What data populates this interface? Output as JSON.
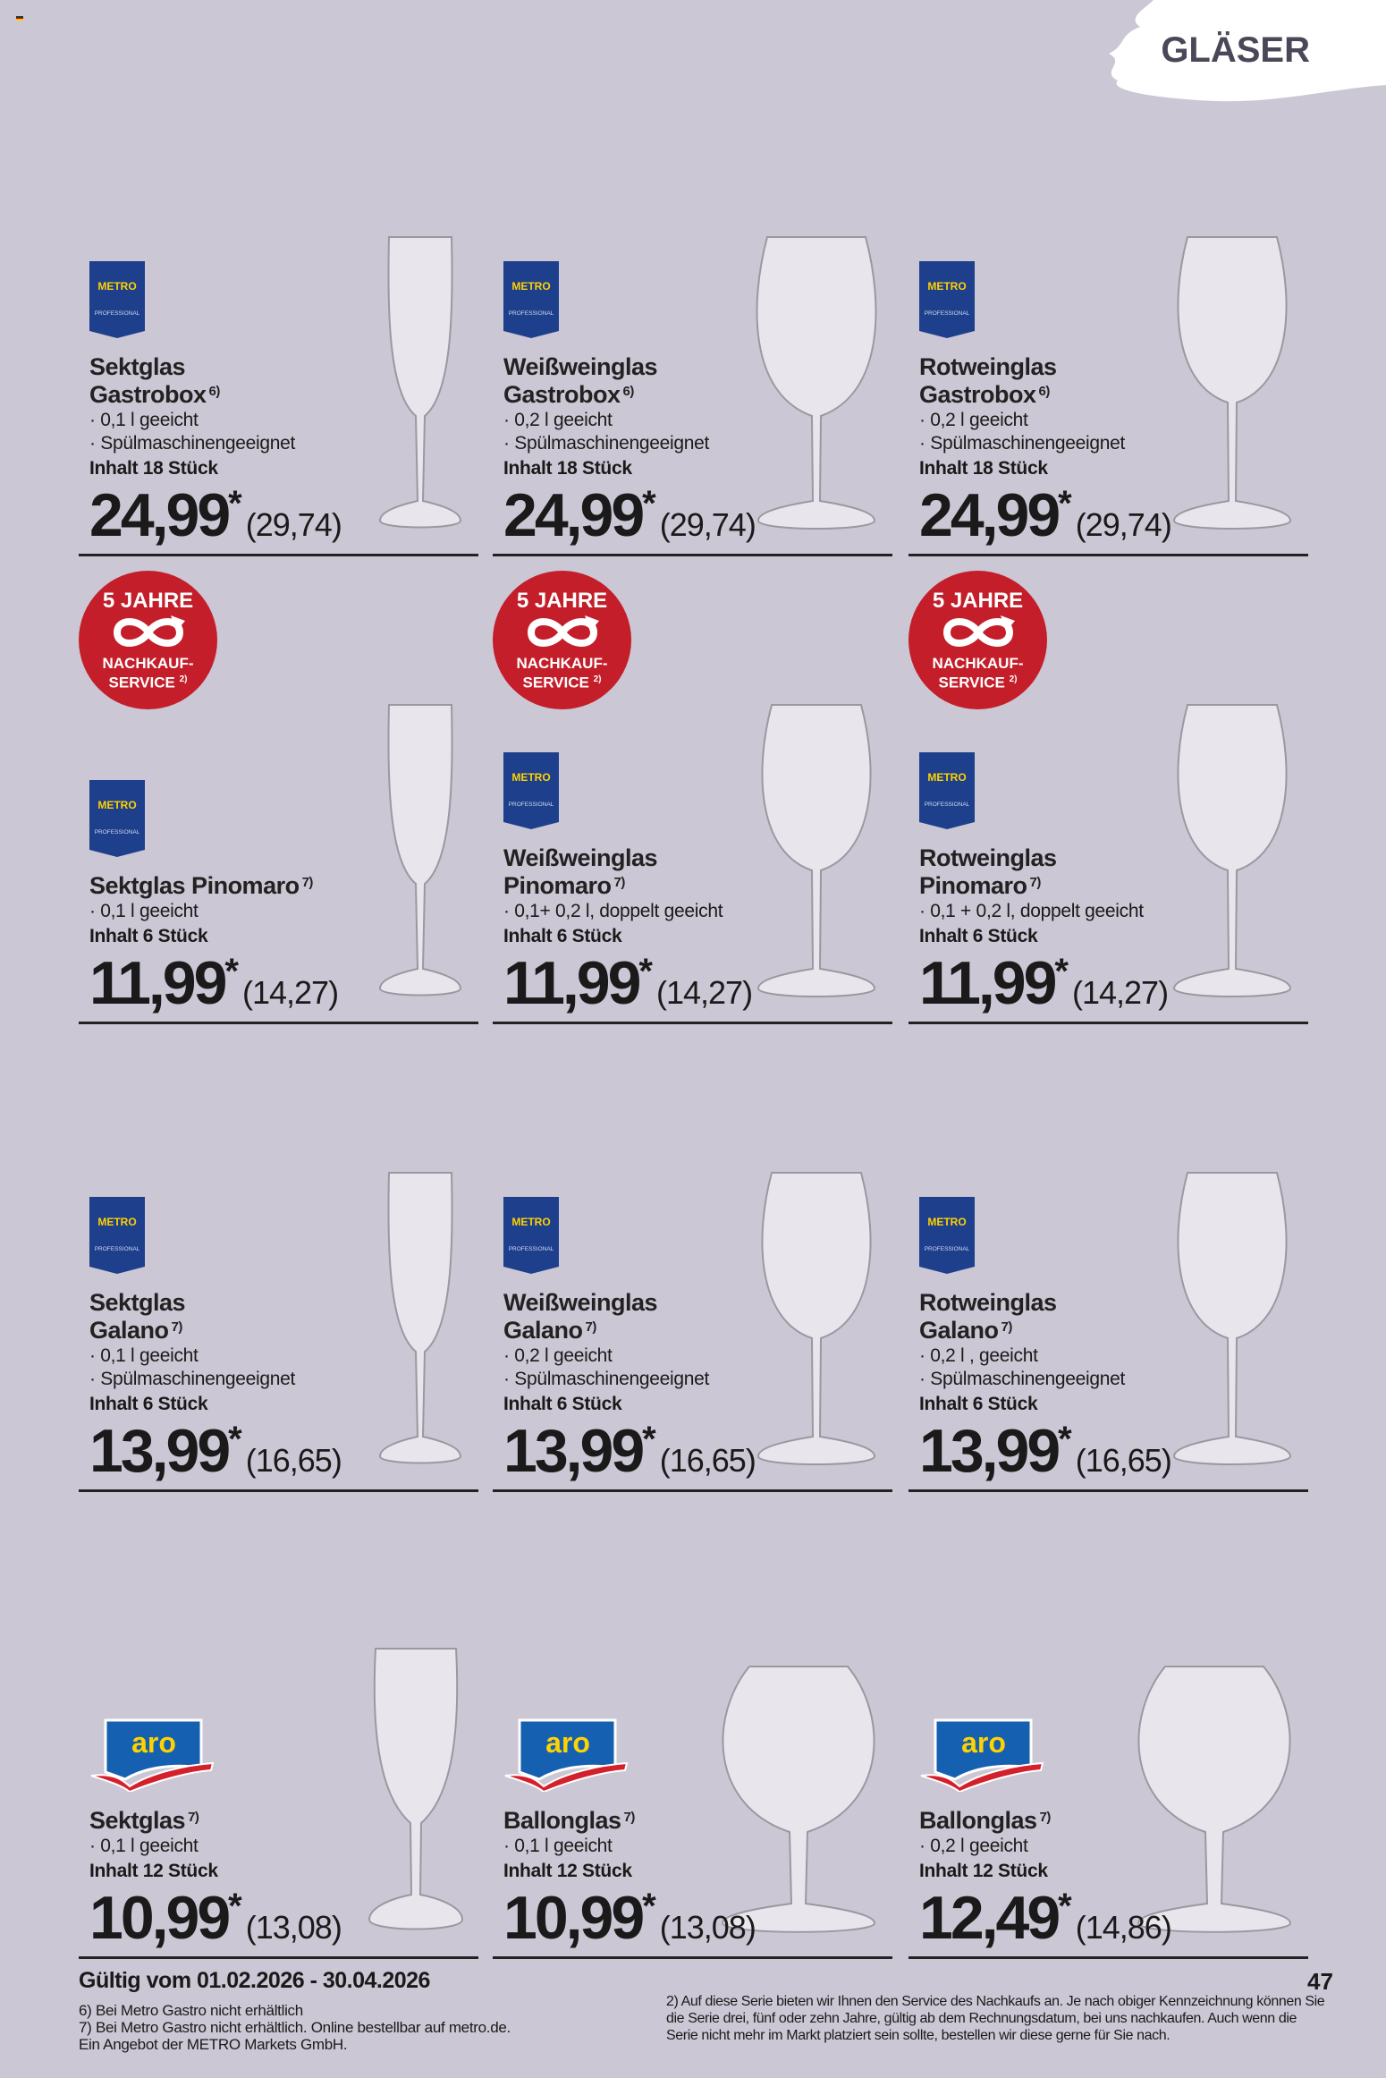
{
  "category": "GLÄSER",
  "page_number": "47",
  "validity": "Gültig vom 01.02.2026 - 30.04.2026",
  "footnotes_left": [
    "6) Bei Metro Gastro nicht erhältlich",
    "7) Bei Metro Gastro nicht erhältlich. Online bestellbar auf metro.de.",
    "Ein Angebot der METRO Markets GmbH."
  ],
  "footnote_right": "2) Auf diese Serie bieten wir Ihnen den Service des Nachkaufs an. Je nach obiger Kennzeichnung können Sie die Serie drei, fünf oder zehn Jahre, gültig ab dem Rechnungsdatum, bei uns nachkaufen. Auch wenn die Serie nicht mehr im Markt platziert sein sollte, bestellen wir diese gerne für Sie nach.",
  "badge": {
    "line1": "5 JAHRE",
    "line2": "NACHKAUF-",
    "line3": "SERVICE",
    "note": "2)",
    "icon": "infinity-arrow-icon",
    "color": "#c41e2a"
  },
  "brands": {
    "metro": {
      "name": "METRO",
      "sub": "PROFESSIONAL",
      "color": "#1d3f8c",
      "accent": "#ffd200"
    },
    "aro": {
      "name": "aro",
      "color": "#1560b0",
      "accent": "#ffd200",
      "swoosh": "#d4202a"
    }
  },
  "products": [
    {
      "brand": "metro",
      "title": [
        "Sektglas",
        "Gastrobox"
      ],
      "note": "6)",
      "bullets": [
        "0,1 l geeicht",
        "Spülmaschinengeeignet"
      ],
      "inhalt": "Inhalt 18 Stück",
      "price": "24,99",
      "star": "*",
      "gross": "(29,74)",
      "glass": "flute",
      "badge": false
    },
    {
      "brand": "metro",
      "title": [
        "Weißweinglas",
        "Gastrobox"
      ],
      "note": "6)",
      "bullets": [
        "0,2 l geeicht",
        "Spülmaschinengeeignet"
      ],
      "inhalt": "Inhalt 18 Stück",
      "price": "24,99",
      "star": "*",
      "gross": "(29,74)",
      "glass": "round",
      "badge": false
    },
    {
      "brand": "metro",
      "title": [
        "Rotweinglas",
        "Gastrobox"
      ],
      "note": "6)",
      "bullets": [
        "0,2 l geeicht",
        "Spülmaschinengeeignet"
      ],
      "inhalt": "Inhalt 18 Stück",
      "price": "24,99",
      "star": "*",
      "gross": "(29,74)",
      "glass": "wine",
      "badge": false
    },
    {
      "brand": "metro",
      "title": [
        "Sektglas Pinomaro"
      ],
      "note": "7)",
      "bullets": [
        "0,1 l geeicht"
      ],
      "inhalt": "Inhalt 6 Stück",
      "price": "11,99",
      "star": "*",
      "gross": "(14,27)",
      "glass": "flute",
      "badge": true
    },
    {
      "brand": "metro",
      "title": [
        "Weißweinglas",
        "Pinomaro"
      ],
      "note": "7)",
      "bullets": [
        "0,1+ 0,2 l, doppelt geeicht"
      ],
      "inhalt": "Inhalt 6 Stück",
      "price": "11,99",
      "star": "*",
      "gross": "(14,27)",
      "glass": "wine",
      "badge": true
    },
    {
      "brand": "metro",
      "title": [
        "Rotweinglas",
        "Pinomaro"
      ],
      "note": "7)",
      "bullets": [
        "0,1 + 0,2 l, doppelt geeicht"
      ],
      "inhalt": "Inhalt 6 Stück",
      "price": "11,99",
      "star": "*",
      "gross": "(14,27)",
      "glass": "wine",
      "badge": true
    },
    {
      "brand": "metro",
      "title": [
        "Sektglas",
        "Galano"
      ],
      "note": "7)",
      "bullets": [
        "0,1 l geeicht",
        "Spülmaschinengeeignet"
      ],
      "inhalt": "Inhalt 6 Stück",
      "price": "13,99",
      "star": "*",
      "gross": "(16,65)",
      "glass": "flute",
      "badge": false
    },
    {
      "brand": "metro",
      "title": [
        "Weißweinglas",
        "Galano"
      ],
      "note": "7)",
      "bullets": [
        "0,2 l geeicht",
        "Spülmaschinengeeignet"
      ],
      "inhalt": "Inhalt 6 Stück",
      "price": "13,99",
      "star": "*",
      "gross": "(16,65)",
      "glass": "wine",
      "badge": false
    },
    {
      "brand": "metro",
      "title": [
        "Rotweinglas",
        "Galano"
      ],
      "note": "7)",
      "bullets": [
        "0,2 l , geeicht",
        "Spülmaschinengeeignet"
      ],
      "inhalt": "Inhalt 6 Stück",
      "price": "13,99",
      "star": "*",
      "gross": "(16,65)",
      "glass": "wine",
      "badge": false
    },
    {
      "brand": "aro",
      "title": [
        "Sektglas"
      ],
      "note": "7)",
      "bullets": [
        "0,1 l geeicht"
      ],
      "inhalt": "Inhalt 12 Stück",
      "price": "10,99",
      "star": "*",
      "gross": "(13,08)",
      "glass": "tulip",
      "badge": false
    },
    {
      "brand": "aro",
      "title": [
        "Ballonglas"
      ],
      "note": "7)",
      "bullets": [
        "0,1 l geeicht"
      ],
      "inhalt": "Inhalt 12 Stück",
      "price": "10,99",
      "star": "*",
      "gross": "(13,08)",
      "glass": "ballon",
      "badge": false
    },
    {
      "brand": "aro",
      "title": [
        "Ballonglas"
      ],
      "note": "7)",
      "bullets": [
        "0,2 l geeicht"
      ],
      "inhalt": "Inhalt 12 Stück",
      "price": "12,49",
      "star": "*",
      "gross": "(14,86)",
      "glass": "ballon",
      "badge": false
    }
  ]
}
